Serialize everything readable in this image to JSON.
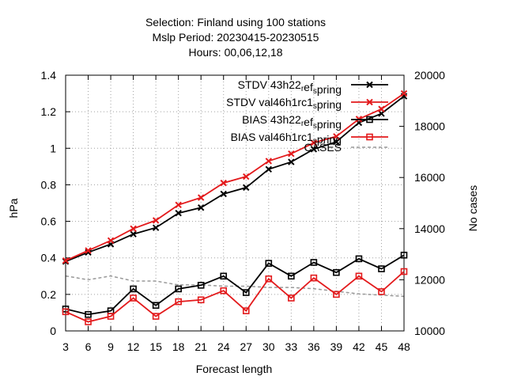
{
  "chart_data": {
    "type": "line",
    "title_lines": [
      "Selection: Finland using   100 stations",
      "Mslp   Period: 20230415-20230515",
      "Hours: 00,06,12,18"
    ],
    "xlabel": "Forecast length",
    "ylabel": "hPa",
    "y2label": "No cases",
    "x": [
      3,
      6,
      9,
      12,
      15,
      18,
      21,
      24,
      27,
      30,
      33,
      36,
      39,
      42,
      45,
      48
    ],
    "xlim": [
      3,
      48
    ],
    "ylim": [
      0,
      1.4
    ],
    "y_ticks": [
      "0",
      "0.2",
      "0.4",
      "0.6",
      "0.8",
      "1",
      "1.2",
      "1.4"
    ],
    "y2lim": [
      10000,
      20000
    ],
    "y2_ticks": [
      "10000",
      "12000",
      "14000",
      "16000",
      "18000",
      "20000"
    ],
    "grid": true,
    "legend_position": "top-left",
    "series": [
      {
        "legend_parts": [
          {
            "t": "STDV 43h22"
          },
          {
            "t": "r",
            "sub": true
          },
          {
            "t": "ef"
          },
          {
            "t": "s",
            "sub": true
          },
          {
            "t": "pring"
          }
        ],
        "color": "#000000",
        "marker": "x",
        "axis": "y",
        "values": [
          0.38,
          0.43,
          0.475,
          0.53,
          0.565,
          0.645,
          0.675,
          0.75,
          0.785,
          0.885,
          0.925,
          0.995,
          1.035,
          1.14,
          1.19,
          1.285
        ]
      },
      {
        "legend_parts": [
          {
            "t": "STDV val46h1rc1"
          },
          {
            "t": "s",
            "sub": true
          },
          {
            "t": "pring"
          }
        ],
        "color": "#e31a1c",
        "marker": "x",
        "axis": "y",
        "values": [
          0.385,
          0.44,
          0.495,
          0.56,
          0.605,
          0.69,
          0.73,
          0.81,
          0.845,
          0.93,
          0.97,
          1.03,
          1.065,
          1.16,
          1.215,
          1.3
        ]
      },
      {
        "legend_parts": [
          {
            "t": "BIAS 43h22"
          },
          {
            "t": "r",
            "sub": true
          },
          {
            "t": "ef"
          },
          {
            "t": "s",
            "sub": true
          },
          {
            "t": "pring"
          }
        ],
        "color": "#000000",
        "marker": "square",
        "axis": "y",
        "values": [
          0.12,
          0.09,
          0.11,
          0.23,
          0.14,
          0.23,
          0.25,
          0.3,
          0.21,
          0.37,
          0.3,
          0.375,
          0.32,
          0.395,
          0.34,
          0.415
        ]
      },
      {
        "legend_parts": [
          {
            "t": "BIAS val46h1rc1"
          },
          {
            "t": "s",
            "sub": true
          },
          {
            "t": "pring"
          }
        ],
        "color": "#e31a1c",
        "marker": "square",
        "axis": "y",
        "values": [
          0.105,
          0.05,
          0.08,
          0.18,
          0.08,
          0.16,
          0.17,
          0.22,
          0.11,
          0.285,
          0.18,
          0.29,
          0.2,
          0.3,
          0.215,
          0.325
        ]
      },
      {
        "legend_parts": [
          {
            "t": "CASES"
          }
        ],
        "color": "#999999",
        "marker": "none",
        "dash": true,
        "axis": "y2",
        "values": [
          12150,
          12000,
          12150,
          11950,
          11950,
          11800,
          11800,
          11750,
          11750,
          11700,
          11700,
          11650,
          11550,
          11450,
          11400,
          11350
        ]
      }
    ]
  }
}
